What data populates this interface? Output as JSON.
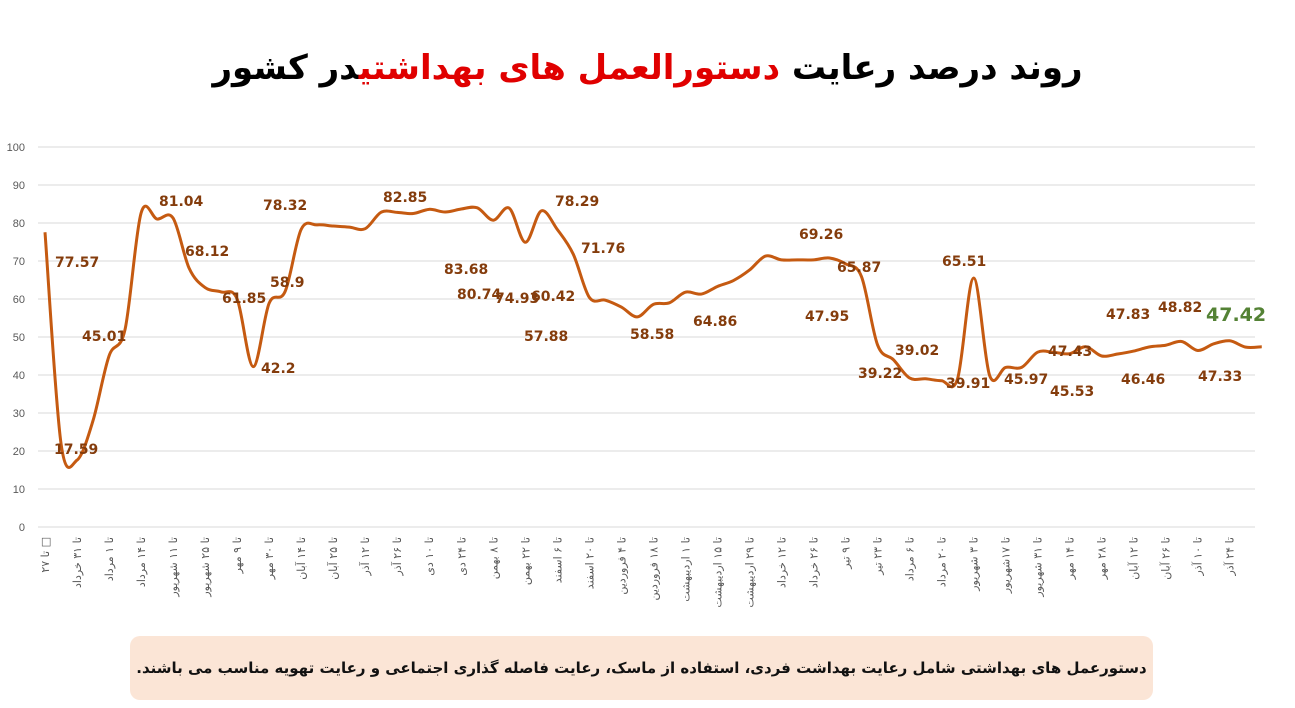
{
  "title": {
    "part1": "روند درصد رعایت ",
    "highlight": "دستورالعمل های بهداشتی",
    "part2": "در کشور",
    "highlight_color": "#e00000"
  },
  "note": "دستورعمل های بهداشتی شامل رعایت بهداشت فردی، استفاده از ماسک، رعایت فاصله گذاری اجتماعی و رعایت تهویه مناسب می باشند.",
  "chart_data": {
    "type": "line",
    "title": "",
    "xlabel": "",
    "ylabel": "",
    "ylim": [
      0,
      100
    ],
    "yticks": [
      0,
      10,
      20,
      30,
      40,
      50,
      60,
      70,
      80,
      90,
      100
    ],
    "grid": true,
    "smooth": true,
    "tick_label_interval": 2,
    "line_color": "#c55a11",
    "label_color": "#843c0c",
    "last_label_color": "#548235",
    "tick_labels": [
      "تا ۲۷ □",
      "تا ۳۱ خرداد",
      "تا ۱ مرداد",
      "تا ۱۴ مرداد",
      "تا ۱۱ شهریور",
      "تا ۲۵ شهریور",
      "تا ۹ مهر",
      "تا ۳۰ مهر",
      "تا ۱۴ آبان",
      "تا ۲۵ آبان",
      "تا ۱۲ آذر",
      "تا ۲۶ آذر",
      "تا ۱۰ دی",
      "تا ۲۴ دی",
      "تا ۸ بهمن",
      "تا ۲۲ بهمن",
      "تا ۶ اسفند",
      "تا ۲۰ اسفند",
      "تا ۴ فروردین",
      "تا ۱۸ فروردین",
      "تا ۱ اردیبهشت",
      "تا ۱۵ اردیبهشت",
      "تا ۲۹ اردیبهشت",
      "تا ۱۲ خرداد",
      "تا ۲۶ خرداد",
      "تا ۹ تیر",
      "تا ۲۳ تیر",
      "تا ۶ مرداد",
      "تا ۲۰ مرداد",
      "تا ۳ شهریور",
      "تا ۱۷شهریور",
      "تا ۳۱ شهریور",
      "تا ۱۴ مهر",
      "تا ۲۸ مهر",
      "تا ۱۲ آبان",
      "تا ۲۶ آبان",
      "تا ۱۰ آذر",
      "تا ۲۴ آذر"
    ],
    "values": [
      77.57,
      22,
      17.59,
      28,
      45.01,
      52,
      82.6,
      81.04,
      81.3,
      68.12,
      63,
      61.85,
      60,
      42.2,
      58.9,
      62,
      78.32,
      79.5,
      79.2,
      78.9,
      78.5,
      82.85,
      82.8,
      82.5,
      83.6,
      82.9,
      83.68,
      84.0,
      80.74,
      83.9,
      74.93,
      83.2,
      78.29,
      71.76,
      60.42,
      59.7,
      57.88,
      55.3,
      58.58,
      59,
      61.8,
      61.3,
      63.3,
      64.86,
      67.6,
      71.3,
      70.3,
      70.3,
      70.3,
      70.8,
      69.26,
      65.87,
      47.95,
      44,
      39.22,
      39,
      38.5,
      39.02,
      65.51,
      39.91,
      42,
      42,
      46,
      45.97,
      45.6,
      47.43,
      45,
      45.53,
      46.3,
      47.4,
      47.83,
      48.82,
      46.46,
      48.2,
      49,
      47.33,
      47.42
    ],
    "labeled_indices": [
      0,
      2,
      4,
      7,
      9,
      11,
      13,
      14,
      16,
      21,
      26,
      28,
      30,
      32,
      33,
      34,
      36,
      38,
      43,
      50,
      51,
      52,
      54,
      57,
      59,
      58,
      63,
      65,
      67,
      70,
      72,
      71,
      75,
      76
    ]
  }
}
